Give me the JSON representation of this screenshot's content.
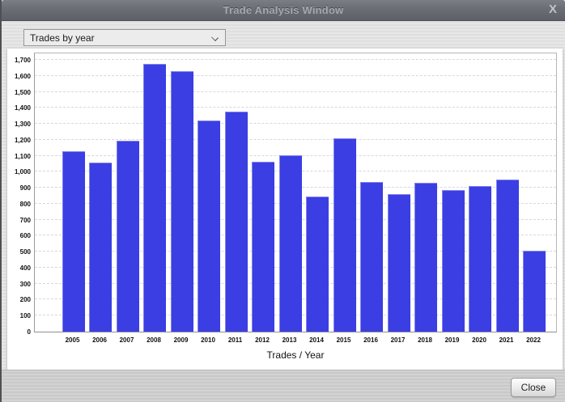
{
  "window": {
    "title": "Trade Analysis Window",
    "close_icon": "X"
  },
  "toolbar": {
    "dropdown_value": "Trades by year"
  },
  "footer": {
    "close_label": "Close"
  },
  "chart_data": {
    "type": "bar",
    "title": "",
    "xlabel": "Trades / Year",
    "ylabel": "",
    "categories": [
      "2005",
      "2006",
      "2007",
      "2008",
      "2009",
      "2010",
      "2011",
      "2012",
      "2013",
      "2014",
      "2015",
      "2016",
      "2017",
      "2018",
      "2019",
      "2020",
      "2021",
      "2022"
    ],
    "values": [
      1130,
      1060,
      1195,
      1675,
      1630,
      1320,
      1375,
      1065,
      1105,
      845,
      1210,
      935,
      860,
      930,
      885,
      910,
      950,
      505
    ],
    "ylim": [
      0,
      1700
    ],
    "ytick_step": 100,
    "grid": "horizontal-dashed",
    "legend": "none",
    "bar_color": "#3B3EE2"
  }
}
